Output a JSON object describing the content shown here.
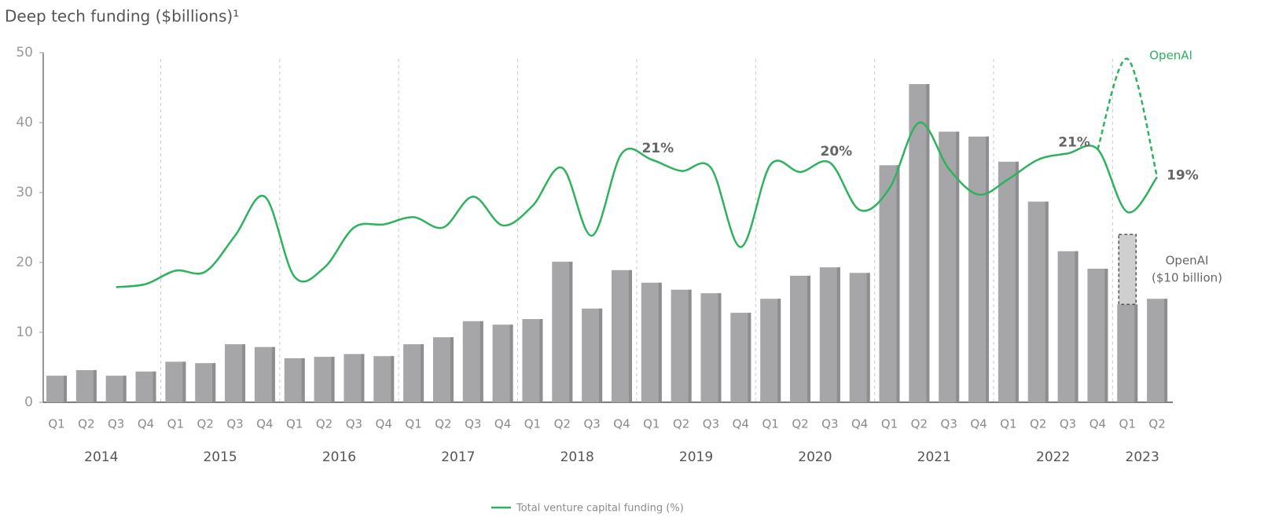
{
  "chart_data": {
    "type": "bar",
    "title": "Deep tech funding ($billions)¹",
    "categories": [
      "Q1",
      "Q2",
      "Q3",
      "Q4",
      "Q1",
      "Q2",
      "Q3",
      "Q4",
      "Q1",
      "Q2",
      "Q3",
      "Q4",
      "Q1",
      "Q2",
      "Q3",
      "Q4",
      "Q1",
      "Q2",
      "Q3",
      "Q4",
      "Q1",
      "Q2",
      "Q3",
      "Q4",
      "Q1",
      "Q2",
      "Q3",
      "Q4",
      "Q1",
      "Q2",
      "Q3",
      "Q4",
      "Q1",
      "Q2",
      "Q3",
      "Q4",
      "Q1",
      "Q2"
    ],
    "years": [
      "2014",
      "2015",
      "2016",
      "2017",
      "2018",
      "2019",
      "2020",
      "2021",
      "2022",
      "2023"
    ],
    "ylim": [
      0,
      50
    ],
    "yticks": [
      0,
      10,
      20,
      30,
      40,
      50
    ],
    "y2lim": [
      -3,
      31
    ],
    "series": [
      {
        "name": "Deep tech funding",
        "type": "bar",
        "color": "#a6a6a9",
        "values": [
          3.8,
          4.6,
          3.8,
          4.4,
          5.8,
          5.6,
          8.3,
          7.9,
          6.3,
          6.5,
          6.9,
          6.6,
          8.3,
          9.3,
          11.6,
          11.1,
          11.9,
          20.1,
          13.4,
          18.9,
          17.1,
          16.1,
          15.6,
          12.8,
          14.8,
          18.1,
          19.3,
          18.5,
          33.9,
          45.5,
          38.7,
          38.0,
          34.4,
          28.7,
          21.6,
          19.1,
          14.0,
          14.8
        ]
      },
      {
        "name": [
          "OpenAI",
          "($10 billion)"
        ],
        "type": "bar-segment",
        "color": "#cfcfcf",
        "values": [
          null,
          null,
          null,
          null,
          null,
          null,
          null,
          null,
          null,
          null,
          null,
          null,
          null,
          null,
          null,
          null,
          null,
          null,
          null,
          null,
          null,
          null,
          null,
          null,
          null,
          null,
          null,
          null,
          null,
          null,
          null,
          null,
          null,
          null,
          null,
          null,
          10,
          null
        ]
      },
      {
        "name": "Total venture capital funding (%)",
        "type": "line",
        "axis": "y2",
        "color": "#2db35d",
        "values": [
          null,
          null,
          8.2,
          8.5,
          9.8,
          9.7,
          13.2,
          17.0,
          9.2,
          10.1,
          14.0,
          14.3,
          15.0,
          14.0,
          17.0,
          14.2,
          16.1,
          19.8,
          13.2,
          21.2,
          20.6,
          19.5,
          19.8,
          12.1,
          20.1,
          19.4,
          20.3,
          15.7,
          17.8,
          24.2,
          19.7,
          17.2,
          18.7,
          20.6,
          21.2,
          21.6,
          15.5,
          18.9
        ],
        "value_labels": [
          null,
          null,
          null,
          null,
          null,
          null,
          null,
          null,
          null,
          null,
          null,
          null,
          null,
          null,
          null,
          null,
          null,
          null,
          null,
          null,
          "21%",
          null,
          null,
          null,
          null,
          null,
          "20%",
          null,
          null,
          null,
          null,
          null,
          null,
          null,
          "21%",
          null,
          null,
          "19%"
        ]
      },
      {
        "name": "OpenAI",
        "type": "dashed-line",
        "axis": "y2",
        "color": "#2db35d",
        "values": [
          null,
          null,
          null,
          null,
          null,
          null,
          null,
          null,
          null,
          null,
          null,
          null,
          null,
          null,
          null,
          null,
          null,
          null,
          null,
          null,
          null,
          null,
          null,
          null,
          null,
          null,
          null,
          null,
          null,
          null,
          null,
          null,
          null,
          null,
          null,
          21.6,
          30.4,
          18.9
        ]
      }
    ]
  }
}
